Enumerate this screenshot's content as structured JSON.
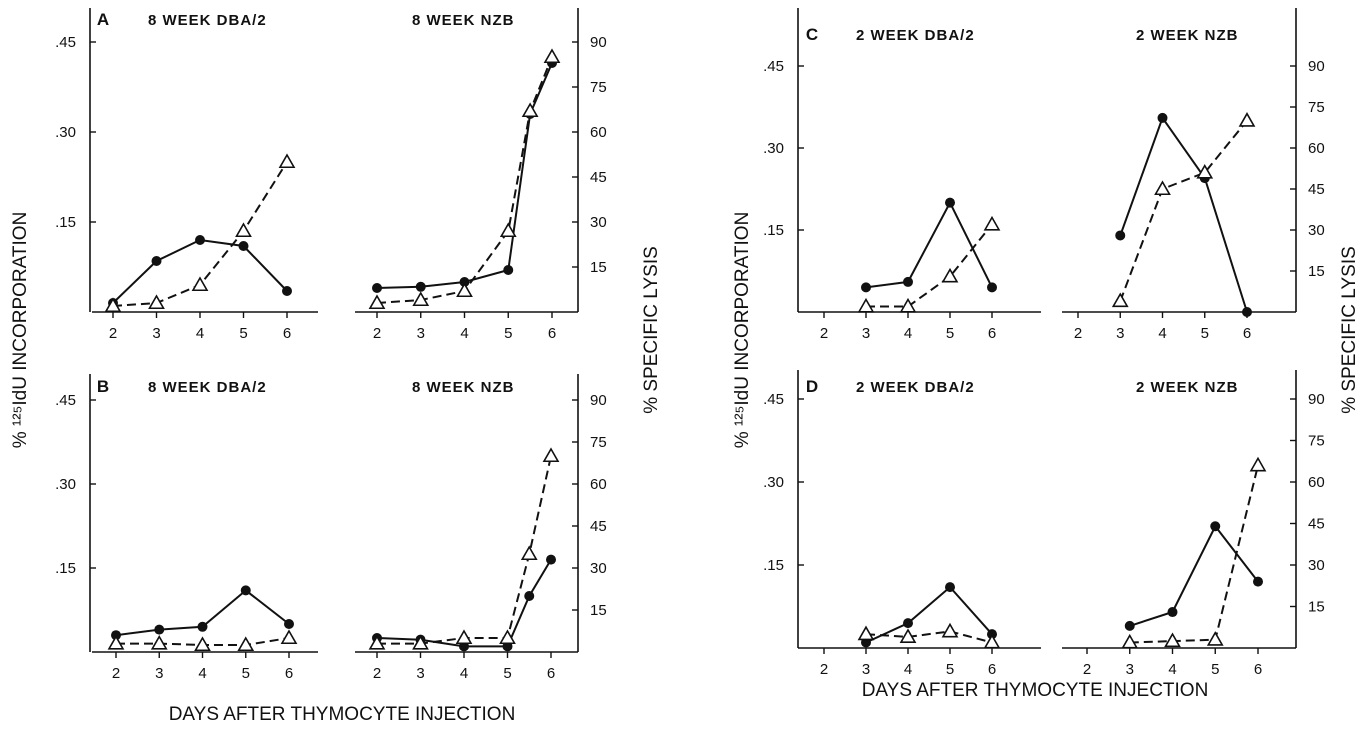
{
  "figure": {
    "xlabel": "DAYS AFTER THYMOCYTE INJECTION",
    "ylabel_left": "% ¹²⁵IdU INCORPORATION",
    "ylabel_right": "% SPECIFIC LYSIS"
  },
  "chart_data": [
    {
      "type": "line",
      "panel": "A",
      "subplot": "left",
      "title": "8 WEEK DBA/2",
      "x": [
        2,
        3,
        4,
        5,
        6
      ],
      "y_left_ticks": [
        ".15",
        ".30",
        ".45"
      ],
      "y_left_range": [
        0,
        0.54
      ],
      "y_right_ticks": [
        "15",
        "30",
        "45",
        "60",
        "75",
        "90"
      ],
      "y_right_range": [
        0,
        108
      ],
      "series": [
        {
          "marker": "filled-circle",
          "line": "solid",
          "axis": "left",
          "values": [
            0.015,
            0.085,
            0.12,
            0.11,
            0.035
          ]
        },
        {
          "marker": "open-triangle",
          "line": "dashed",
          "axis": "right",
          "values": [
            2,
            3,
            9,
            27,
            50
          ]
        }
      ]
    },
    {
      "type": "line",
      "panel": "A",
      "subplot": "right",
      "title": "8 WEEK NZB",
      "x": [
        2,
        3,
        4,
        5,
        5.5,
        6
      ],
      "y_left_range": [
        0,
        0.54
      ],
      "y_right_range": [
        0,
        108
      ],
      "series": [
        {
          "marker": "filled-circle",
          "line": "solid",
          "axis": "left",
          "values": [
            0.04,
            0.042,
            0.05,
            0.07,
            0.33,
            0.415
          ]
        },
        {
          "marker": "open-triangle",
          "line": "dashed",
          "axis": "right",
          "values": [
            3,
            4,
            7,
            27,
            67,
            85
          ]
        }
      ]
    },
    {
      "type": "line",
      "panel": "B",
      "subplot": "left",
      "title": "8 WEEK DBA/2",
      "x": [
        2,
        3,
        4,
        5,
        6
      ],
      "y_left_ticks": [
        ".15",
        ".30",
        ".45"
      ],
      "y_left_range": [
        0,
        0.54
      ],
      "y_right_ticks": [
        "15",
        "30",
        "45",
        "60",
        "75",
        "90"
      ],
      "y_right_range": [
        0,
        108
      ],
      "series": [
        {
          "marker": "filled-circle",
          "line": "solid",
          "axis": "left",
          "values": [
            0.03,
            0.04,
            0.045,
            0.11,
            0.05
          ]
        },
        {
          "marker": "open-triangle",
          "line": "dashed",
          "axis": "right",
          "values": [
            3,
            3,
            2.5,
            2.5,
            5
          ]
        }
      ]
    },
    {
      "type": "line",
      "panel": "B",
      "subplot": "right",
      "title": "8 WEEK NZB",
      "x": [
        2,
        3,
        4,
        5,
        5.5,
        6
      ],
      "y_left_range": [
        0,
        0.54
      ],
      "y_right_range": [
        0,
        108
      ],
      "series": [
        {
          "marker": "filled-circle",
          "line": "solid",
          "axis": "left",
          "values": [
            0.025,
            0.022,
            0.01,
            0.01,
            0.1,
            0.165
          ]
        },
        {
          "marker": "open-triangle",
          "line": "dashed",
          "axis": "right",
          "values": [
            3,
            3,
            5,
            5,
            35,
            70
          ]
        }
      ]
    },
    {
      "type": "line",
      "panel": "C",
      "subplot": "left",
      "title": "2 WEEK DBA/2",
      "x": [
        3,
        4,
        5,
        6
      ],
      "y_left_ticks": [
        ".15",
        ".30",
        ".45"
      ],
      "y_left_range": [
        0,
        0.54
      ],
      "y_right_ticks": [
        "15",
        "30",
        "45",
        "60",
        "75",
        "90"
      ],
      "y_right_range": [
        0,
        108
      ],
      "series": [
        {
          "marker": "filled-circle",
          "line": "solid",
          "axis": "left",
          "values": [
            0.045,
            0.055,
            0.2,
            0.045
          ]
        },
        {
          "marker": "open-triangle",
          "line": "dashed",
          "axis": "right",
          "values": [
            2,
            2,
            13,
            32
          ]
        }
      ]
    },
    {
      "type": "line",
      "panel": "C",
      "subplot": "right",
      "title": "2 WEEK NZB",
      "x": [
        3,
        4,
        5,
        6
      ],
      "y_left_range": [
        0,
        0.54
      ],
      "y_right_range": [
        0,
        108
      ],
      "series": [
        {
          "marker": "filled-circle",
          "line": "solid",
          "axis": "left",
          "values": [
            0.14,
            0.355,
            0.245,
            0.0
          ]
        },
        {
          "marker": "open-triangle",
          "line": "dashed",
          "axis": "right",
          "values": [
            4,
            45,
            51,
            70
          ]
        }
      ]
    },
    {
      "type": "line",
      "panel": "D",
      "subplot": "left",
      "title": "2 WEEK DBA/2",
      "x": [
        3,
        4,
        5,
        6
      ],
      "y_left_ticks": [
        ".15",
        ".30",
        ".45"
      ],
      "y_left_range": [
        0,
        0.54
      ],
      "y_right_ticks": [
        "15",
        "30",
        "45",
        "60",
        "75",
        "90"
      ],
      "y_right_range": [
        0,
        108
      ],
      "series": [
        {
          "marker": "filled-circle",
          "line": "solid",
          "axis": "left",
          "values": [
            0.01,
            0.045,
            0.11,
            0.025
          ]
        },
        {
          "marker": "open-triangle",
          "line": "dashed",
          "axis": "right",
          "values": [
            5,
            4,
            6,
            2
          ]
        }
      ]
    },
    {
      "type": "line",
      "panel": "D",
      "subplot": "right",
      "title": "2 WEEK NZB",
      "x": [
        3,
        4,
        5,
        6
      ],
      "y_left_range": [
        0,
        0.54
      ],
      "y_right_range": [
        0,
        108
      ],
      "series": [
        {
          "marker": "filled-circle",
          "line": "solid",
          "axis": "left",
          "values": [
            0.04,
            0.065,
            0.22,
            0.12
          ]
        },
        {
          "marker": "open-triangle",
          "line": "dashed",
          "axis": "right",
          "values": [
            2,
            2.5,
            3,
            66
          ]
        }
      ]
    }
  ]
}
